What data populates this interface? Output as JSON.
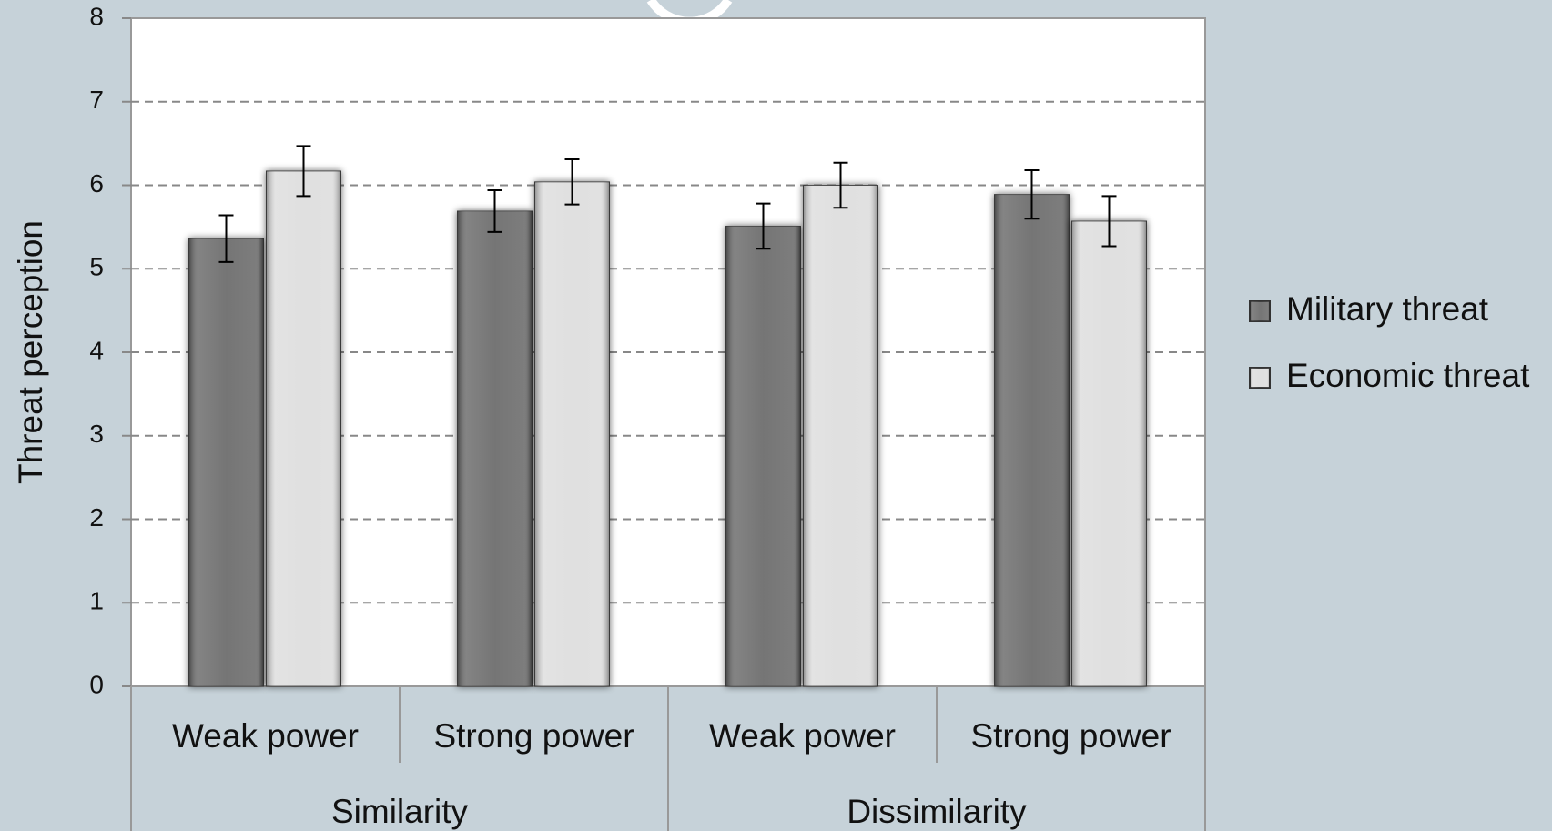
{
  "chart_data": {
    "type": "bar",
    "y_axis_label": "Threat perception",
    "categories": [
      "Weak power",
      "Strong power",
      "Weak power",
      "Strong power"
    ],
    "groups": [
      "Similarity",
      "Dissimilarity"
    ],
    "series": [
      {
        "name": "Military threat",
        "color": "#6e6e6e",
        "values": [
          5.36,
          5.69,
          5.51,
          5.89
        ],
        "errors": [
          0.28,
          0.25,
          0.27,
          0.29
        ]
      },
      {
        "name": "Economic threat",
        "color": "#dedede",
        "values": [
          6.17,
          6.04,
          6.0,
          5.57
        ],
        "errors": [
          0.3,
          0.27,
          0.27,
          0.3
        ]
      }
    ],
    "ylim": [
      0,
      8
    ],
    "yticks": [
      0,
      1,
      2,
      3,
      4,
      5,
      6,
      7,
      8
    ],
    "grid": true,
    "legend": "right"
  }
}
